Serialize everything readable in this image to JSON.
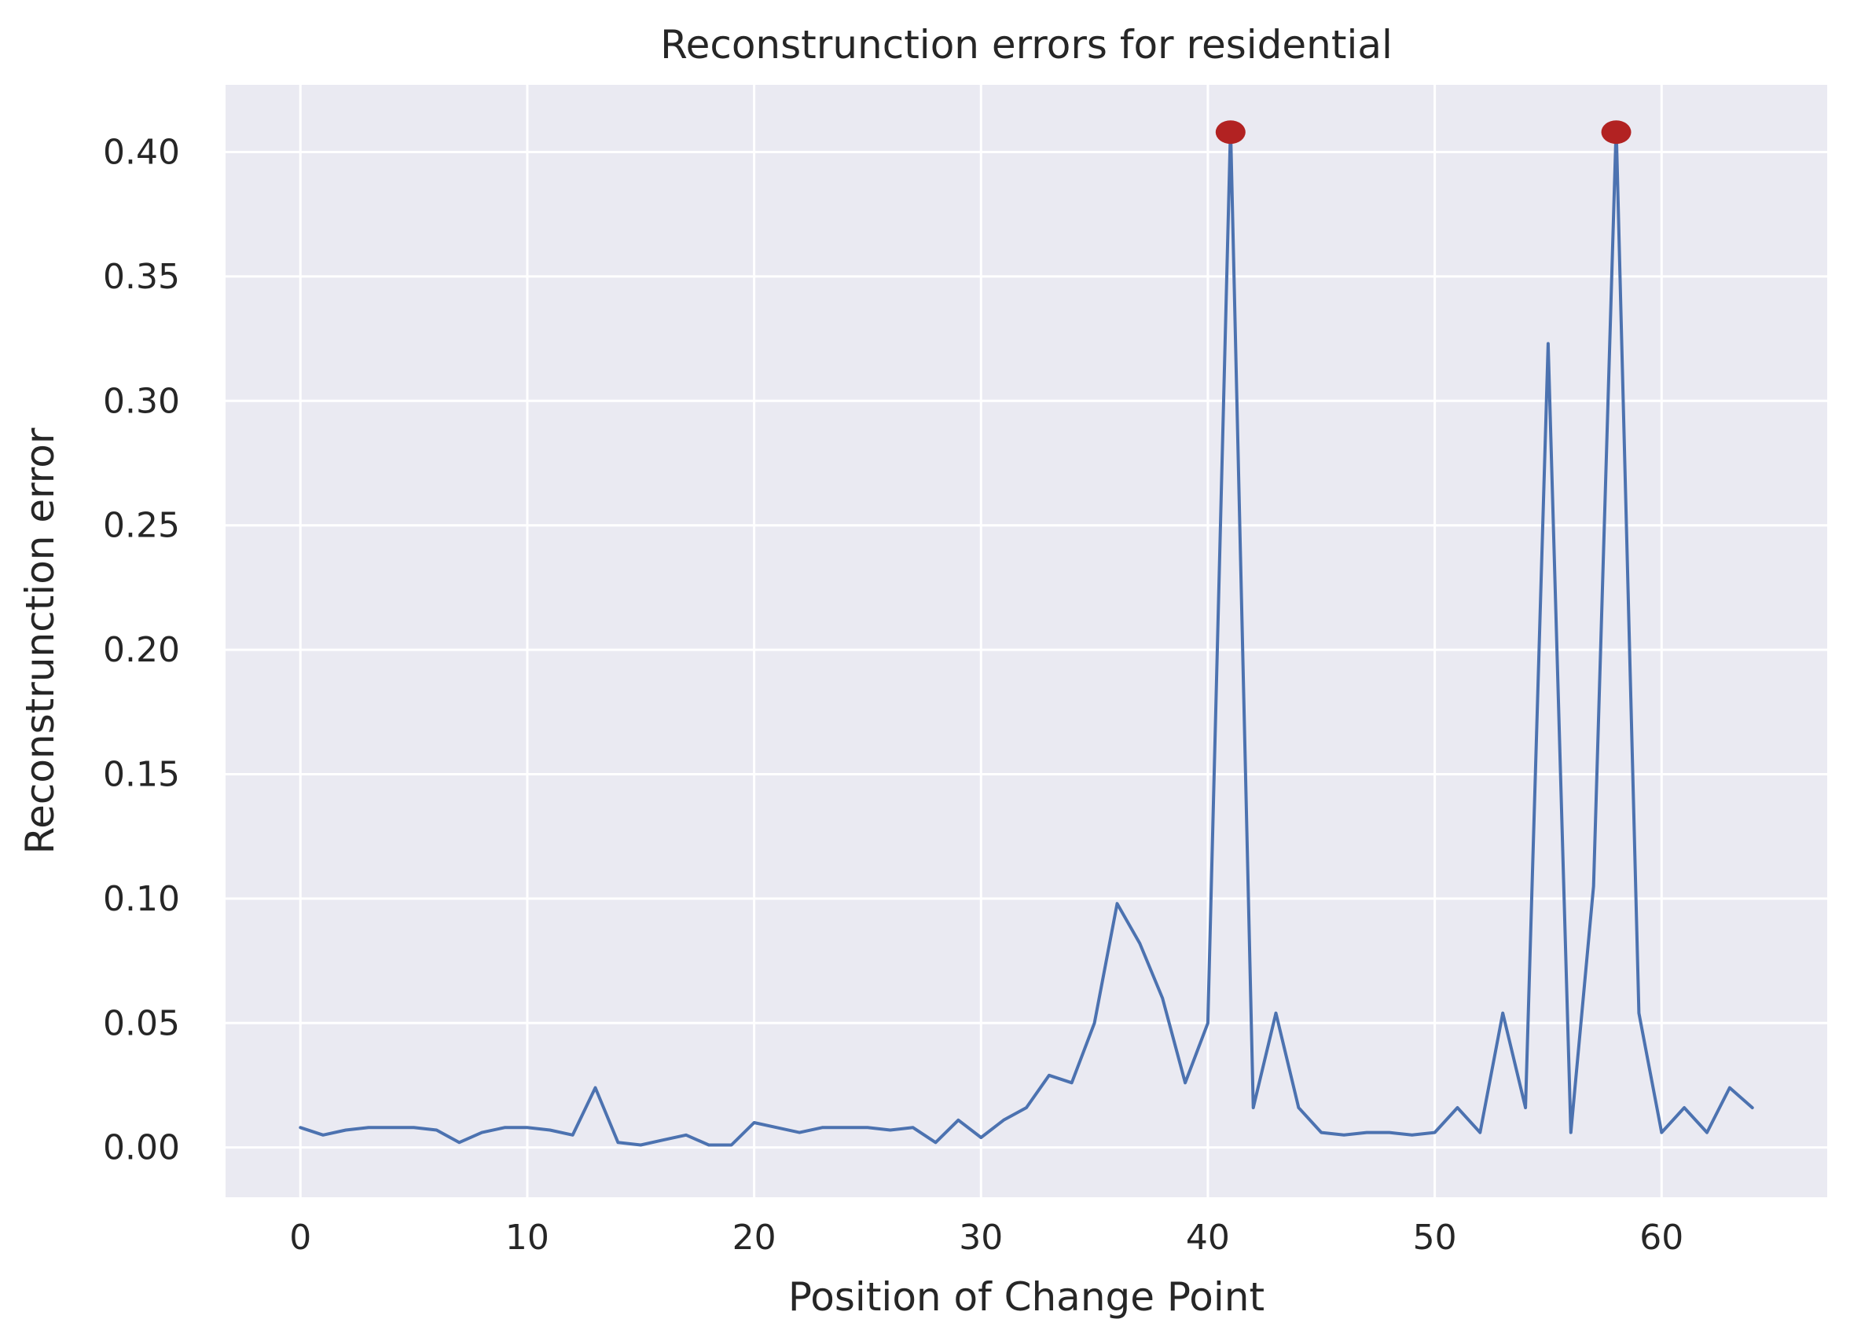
{
  "chart_data": {
    "type": "line",
    "title": "Reconstrunction  errors for residential",
    "xlabel": "Position of Change Point",
    "ylabel": "Reconstrunction  error",
    "xlim": [
      -3.3,
      67.3
    ],
    "ylim": [
      -0.02,
      0.427
    ],
    "x_ticks": [
      0,
      10,
      20,
      30,
      40,
      50,
      60
    ],
    "y_ticks": [
      0.0,
      0.05,
      0.1,
      0.15,
      0.2,
      0.25,
      0.3,
      0.35,
      0.4
    ],
    "y_tick_labels": [
      "0.00",
      "0.05",
      "0.10",
      "0.15",
      "0.20",
      "0.25",
      "0.30",
      "0.35",
      "0.40"
    ],
    "grid": true,
    "background_color": "#eaeaf2",
    "grid_color": "#ffffff",
    "series": [
      {
        "color": "#4c72b0",
        "x": [
          0,
          1,
          2,
          3,
          4,
          5,
          6,
          7,
          8,
          9,
          10,
          11,
          12,
          13,
          14,
          15,
          16,
          17,
          18,
          19,
          20,
          21,
          22,
          23,
          24,
          25,
          26,
          27,
          28,
          29,
          30,
          31,
          32,
          33,
          34,
          35,
          36,
          37,
          38,
          39,
          40,
          41,
          42,
          43,
          44,
          45,
          46,
          47,
          48,
          49,
          50,
          51,
          52,
          53,
          54,
          55,
          56,
          57,
          58,
          59,
          60,
          61,
          62,
          63,
          64
        ],
        "values": [
          0.008,
          0.005,
          0.007,
          0.008,
          0.008,
          0.008,
          0.007,
          0.002,
          0.006,
          0.008,
          0.008,
          0.007,
          0.005,
          0.024,
          0.002,
          0.001,
          0.003,
          0.005,
          0.001,
          0.001,
          0.01,
          0.008,
          0.006,
          0.008,
          0.008,
          0.008,
          0.007,
          0.008,
          0.002,
          0.011,
          0.004,
          0.011,
          0.016,
          0.029,
          0.026,
          0.05,
          0.098,
          0.082,
          0.06,
          0.026,
          0.05,
          0.41,
          0.016,
          0.054,
          0.016,
          0.006,
          0.005,
          0.006,
          0.006,
          0.005,
          0.006,
          0.016,
          0.006,
          0.054,
          0.016,
          0.323,
          0.006,
          0.105,
          0.41,
          0.054,
          0.006,
          0.016,
          0.006,
          0.024,
          0.016
        ]
      }
    ],
    "highlighted_points": {
      "color": "#b22222",
      "x": [
        41,
        58
      ],
      "values": [
        0.408,
        0.408
      ]
    }
  }
}
